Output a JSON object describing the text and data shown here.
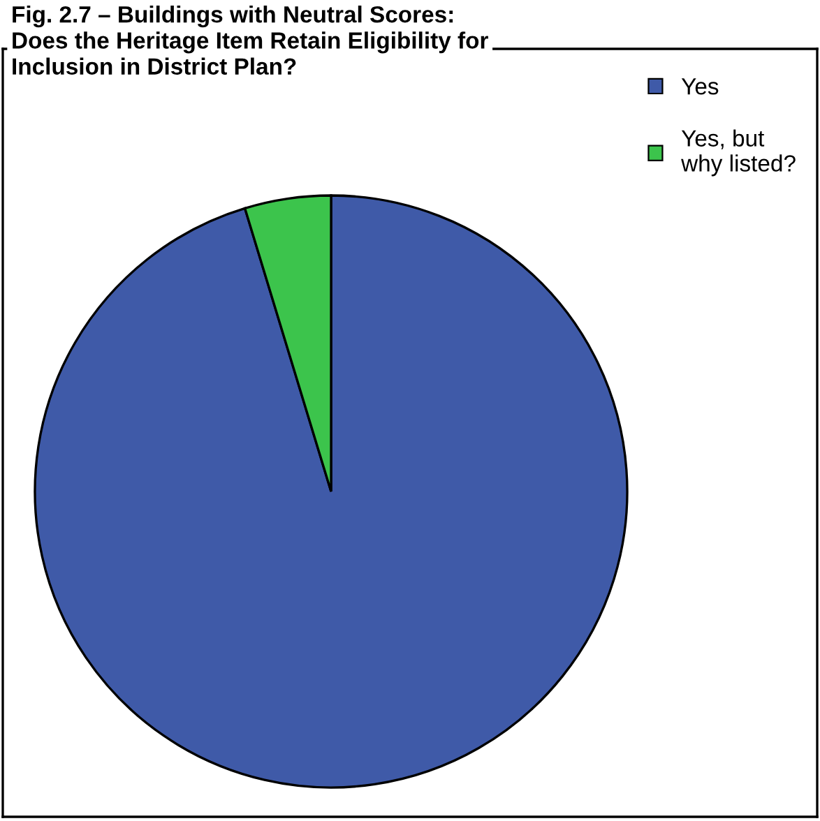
{
  "chart_data": {
    "type": "pie",
    "title": "Fig. 2.7 – Buildings with Neutral Scores:\nDoes the Heritage Item Retain Eligibility for\nInclusion in District Plan?",
    "categories": [
      "Yes",
      "Yes, but\nwhy listed?"
    ],
    "values": [
      95.3,
      4.7
    ],
    "colors": [
      "#3f5aa8",
      "#3cc44c"
    ],
    "legend": "top right"
  }
}
